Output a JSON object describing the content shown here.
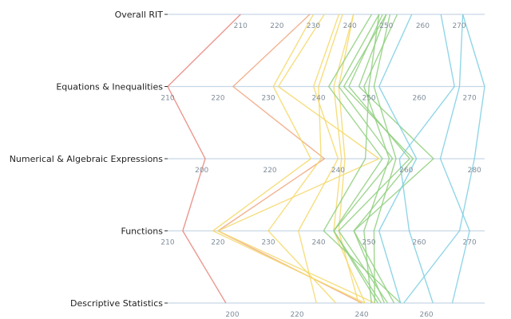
{
  "chart_data": {
    "type": "parallel-coordinates-horizontal",
    "dimensions": [
      {
        "name": "Overall RIT",
        "range": [
          190,
          277
        ],
        "ticks": [
          210,
          220,
          230,
          240,
          250,
          260,
          270
        ]
      },
      {
        "name": "Equations & Inequalities",
        "range": [
          210,
          273
        ],
        "ticks": [
          210,
          220,
          230,
          240,
          250,
          260,
          270
        ]
      },
      {
        "name": "Numerical & Algebraic Expressions",
        "range": [
          190,
          283
        ],
        "ticks": [
          200,
          220,
          240,
          260,
          280
        ]
      },
      {
        "name": "Functions",
        "range": [
          210,
          273
        ],
        "ticks": [
          210,
          220,
          230,
          240,
          250,
          260,
          270
        ]
      },
      {
        "name": "Descriptive Statistics",
        "range": [
          180,
          278
        ],
        "ticks": [
          200,
          220,
          240,
          260
        ]
      }
    ],
    "series": [
      {
        "color": "#e8857c",
        "values": [
          210,
          210,
          201,
          213,
          198
        ]
      },
      {
        "color": "#f0a57c",
        "values": [
          229,
          223,
          236,
          220,
          240
        ]
      },
      {
        "color": "#f5d86a",
        "values": [
          230,
          231,
          232,
          219,
          241
        ]
      },
      {
        "color": "#f5d86a",
        "values": [
          233,
          232,
          252,
          220,
          244
        ]
      },
      {
        "color": "#f5d86a",
        "values": [
          237,
          239,
          240,
          236,
          226
        ]
      },
      {
        "color": "#f5d86a",
        "values": [
          238,
          240,
          235,
          230,
          232
        ]
      },
      {
        "color": "#f5d86a",
        "values": [
          241,
          243,
          241,
          243,
          241
        ]
      },
      {
        "color": "#f5d86a",
        "values": [
          241,
          244,
          242,
          244,
          239
        ]
      },
      {
        "color": "#8fcf7e",
        "values": [
          246,
          242,
          253,
          243,
          245
        ]
      },
      {
        "color": "#8fcf7e",
        "values": [
          248,
          244,
          256,
          243,
          246
        ]
      },
      {
        "color": "#8fcf7e",
        "values": [
          248,
          250,
          248,
          241,
          252
        ]
      },
      {
        "color": "#8fcf7e",
        "values": [
          249,
          246,
          261,
          244,
          248
        ]
      },
      {
        "color": "#8fcf7e",
        "values": [
          250,
          245,
          262,
          247,
          250
        ]
      },
      {
        "color": "#8fcf7e",
        "values": [
          251,
          251,
          257,
          251,
          244
        ]
      },
      {
        "color": "#8fcf7e",
        "values": [
          253,
          249,
          255,
          249,
          243
        ]
      },
      {
        "color": "#8fcf7e",
        "values": [
          250,
          248,
          268,
          247,
          247
        ]
      },
      {
        "color": "#7ecfe3",
        "values": [
          257,
          252,
          263,
          252,
          252
        ]
      },
      {
        "color": "#7ecfe3",
        "values": [
          265,
          267,
          258,
          258,
          262
        ]
      },
      {
        "color": "#7ecfe3",
        "values": [
          271,
          268,
          270,
          270,
          268
        ]
      },
      {
        "color": "#7ecfe3",
        "values": [
          271,
          273,
          280,
          268,
          253
        ]
      }
    ]
  }
}
